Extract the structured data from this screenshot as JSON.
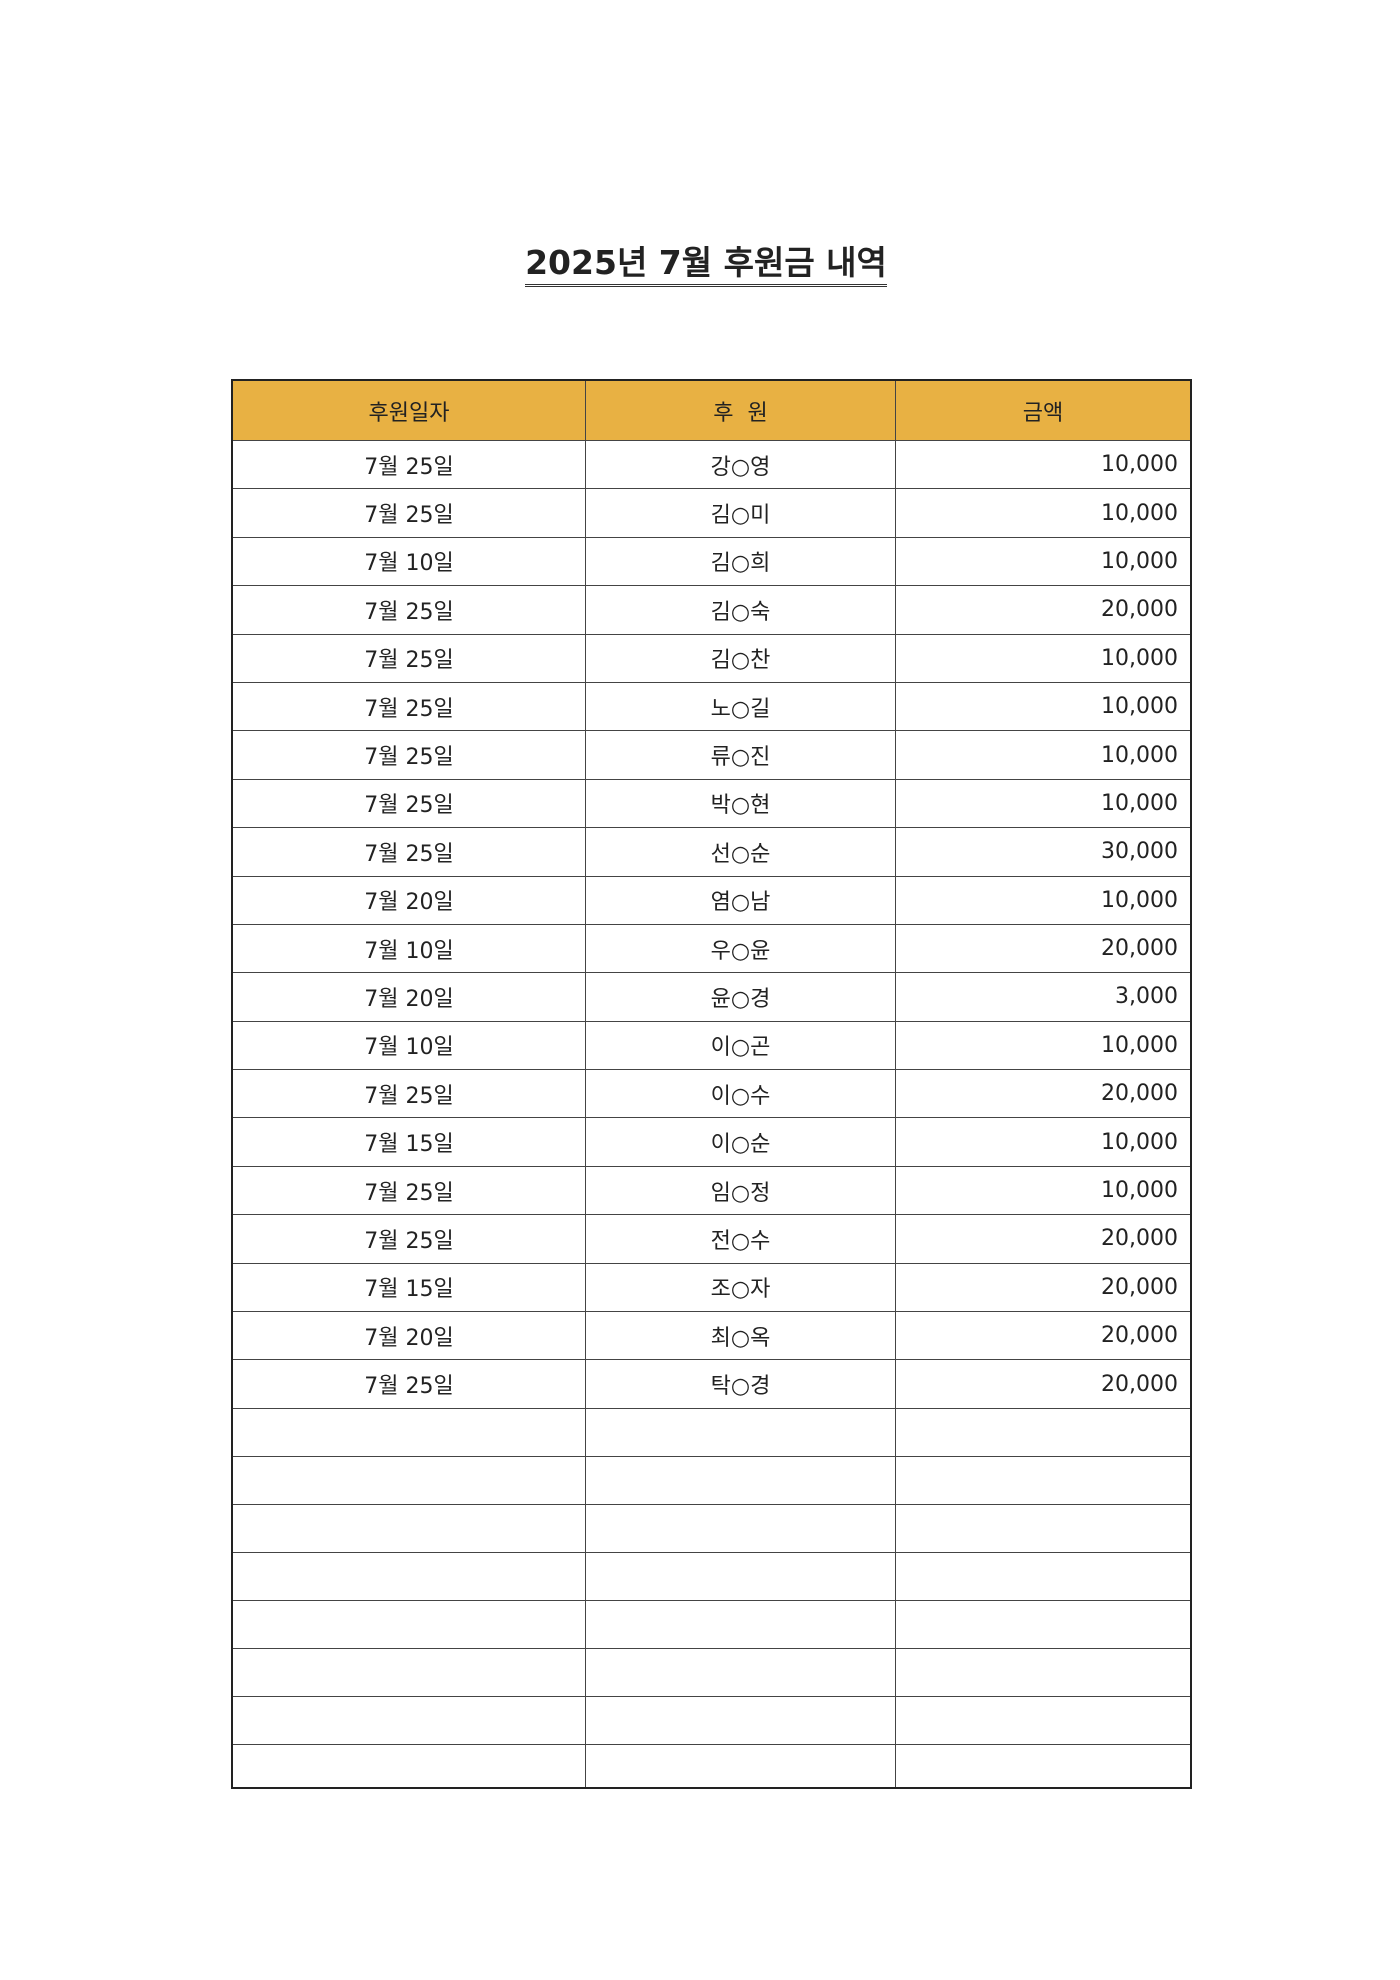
{
  "title": "2025년 7월 후원금 내역",
  "headers": {
    "date": "후원일자",
    "donor": "후  원",
    "amount": "금액"
  },
  "header_color": "#e8b143",
  "rows": [
    {
      "date": "7월 25일",
      "donor": "강○영",
      "amount": "10,000"
    },
    {
      "date": "7월 25일",
      "donor": "김○미",
      "amount": "10,000"
    },
    {
      "date": "7월 10일",
      "donor": "김○희",
      "amount": "10,000"
    },
    {
      "date": "7월 25일",
      "donor": "김○숙",
      "amount": "20,000"
    },
    {
      "date": "7월 25일",
      "donor": "김○찬",
      "amount": "10,000"
    },
    {
      "date": "7월 25일",
      "donor": "노○길",
      "amount": "10,000"
    },
    {
      "date": "7월 25일",
      "donor": "류○진",
      "amount": "10,000"
    },
    {
      "date": "7월 25일",
      "donor": "박○현",
      "amount": "10,000"
    },
    {
      "date": "7월 25일",
      "donor": "선○순",
      "amount": "30,000"
    },
    {
      "date": "7월 20일",
      "donor": "염○남",
      "amount": "10,000"
    },
    {
      "date": "7월 10일",
      "donor": "우○윤",
      "amount": "20,000"
    },
    {
      "date": "7월 20일",
      "donor": "윤○경",
      "amount": "3,000"
    },
    {
      "date": "7월 10일",
      "donor": "이○곤",
      "amount": "10,000"
    },
    {
      "date": "7월 25일",
      "donor": "이○수",
      "amount": "20,000"
    },
    {
      "date": "7월 15일",
      "donor": "이○순",
      "amount": "10,000"
    },
    {
      "date": "7월 25일",
      "donor": "임○정",
      "amount": "10,000"
    },
    {
      "date": "7월 25일",
      "donor": "전○수",
      "amount": "20,000"
    },
    {
      "date": "7월 15일",
      "donor": "조○자",
      "amount": "20,000"
    },
    {
      "date": "7월 20일",
      "donor": "최○옥",
      "amount": "20,000"
    },
    {
      "date": "7월 25일",
      "donor": "탁○경",
      "amount": "20,000"
    }
  ]
}
